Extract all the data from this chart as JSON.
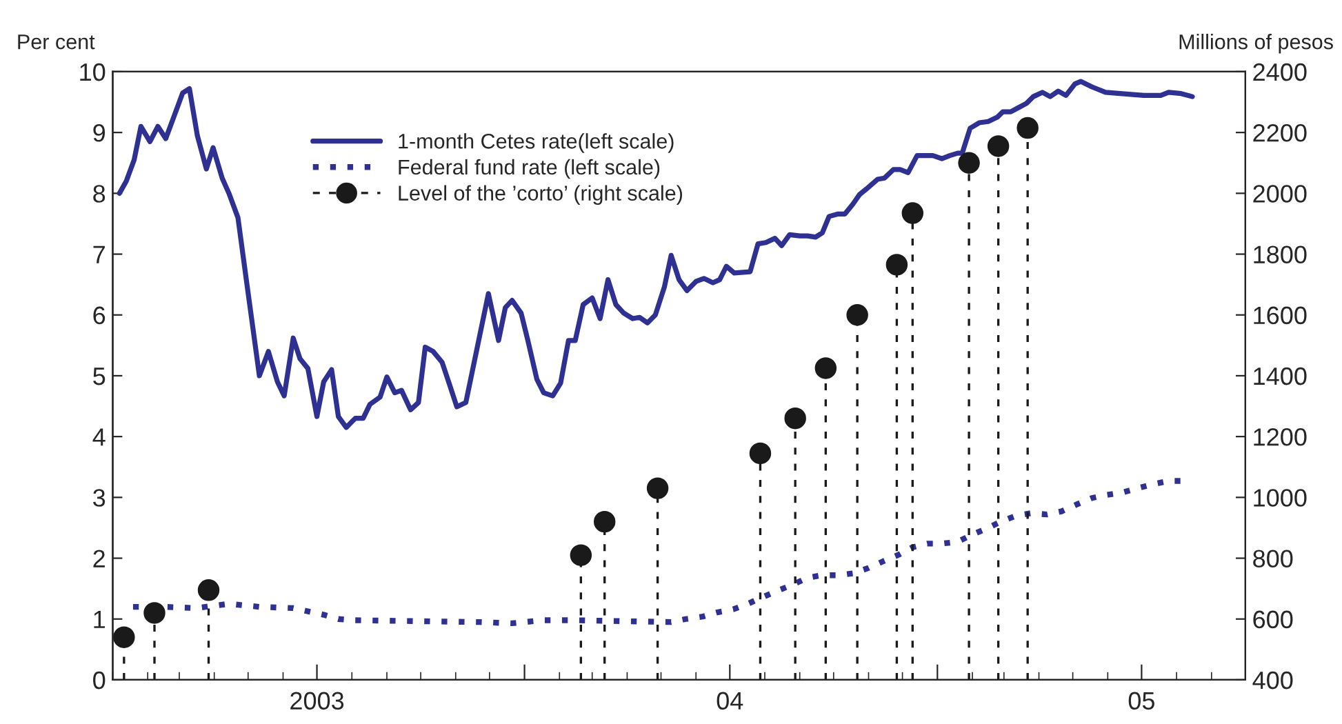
{
  "chart_data": {
    "type": "line",
    "xlabel": null,
    "ylabel": "Per cent",
    "y2label": "Millions of pesos",
    "xlim": [
      "2003-01-01",
      "2005-10-01"
    ],
    "xticks": [
      {
        "value": "2003-07-01",
        "label": "2003"
      },
      {
        "value": "2004-01-01",
        "label": null
      },
      {
        "value": "2004-07-01",
        "label": "04"
      },
      {
        "value": "2005-01-01",
        "label": null
      },
      {
        "value": "2005-07-01",
        "label": "05"
      }
    ],
    "ylim": [
      0,
      10
    ],
    "yticks": [
      0,
      1,
      2,
      3,
      4,
      5,
      6,
      7,
      8,
      9,
      10
    ],
    "y2lim": [
      400,
      2400
    ],
    "y2ticks": [
      400,
      600,
      800,
      1000,
      1200,
      1400,
      1600,
      1800,
      2000,
      2200,
      2400
    ],
    "grid": false,
    "legend": "top left",
    "series": [
      {
        "name": "1-month Cetes rate(left scale)",
        "color": "#2e3192",
        "line_style": "solid",
        "marker": "none",
        "x": [
          "2003-01-07",
          "2003-01-13",
          "2003-01-20",
          "2003-01-26",
          "2003-02-03",
          "2003-02-10",
          "2003-02-17",
          "2003-02-25",
          "2003-03-04",
          "2003-03-10",
          "2003-03-17",
          "2003-03-25",
          "2003-03-31",
          "2003-04-08",
          "2003-04-14",
          "2003-04-22",
          "2003-04-30",
          "2003-05-11",
          "2003-05-19",
          "2003-05-27",
          "2003-06-02",
          "2003-06-10",
          "2003-06-16",
          "2003-06-23",
          "2003-07-01",
          "2003-07-07",
          "2003-07-14",
          "2003-07-20",
          "2003-07-27",
          "2003-08-04",
          "2003-08-11",
          "2003-08-17",
          "2003-08-26",
          "2003-09-01",
          "2003-09-08",
          "2003-09-14",
          "2003-09-22",
          "2003-09-29",
          "2003-10-05",
          "2003-10-12",
          "2003-10-20",
          "2003-10-27",
          "2003-11-02",
          "2003-11-10",
          "2003-11-30",
          "2003-12-09",
          "2003-12-15",
          "2003-12-21",
          "2003-12-29",
          "2004-01-04",
          "2004-01-12",
          "2004-01-18",
          "2004-01-26",
          "2004-02-02",
          "2004-02-09",
          "2004-02-15",
          "2004-02-22",
          "2004-03-01",
          "2004-03-08",
          "2004-03-15",
          "2004-03-22",
          "2004-03-29",
          "2004-04-06",
          "2004-04-12",
          "2004-04-19",
          "2004-04-26",
          "2004-05-04",
          "2004-05-10",
          "2004-05-17",
          "2004-05-24",
          "2004-06-01",
          "2004-06-08",
          "2004-06-16",
          "2004-06-22",
          "2004-06-28",
          "2004-07-05",
          "2004-07-19",
          "2004-07-26",
          "2004-08-02",
          "2004-08-10",
          "2004-08-16",
          "2004-08-23",
          "2004-09-01",
          "2004-09-08",
          "2004-09-15",
          "2004-09-21",
          "2004-09-27",
          "2004-10-05",
          "2004-10-11",
          "2004-10-18",
          "2004-10-24",
          "2004-10-30",
          "2004-11-09",
          "2004-11-15",
          "2004-11-23",
          "2004-11-29",
          "2004-12-06",
          "2004-12-14",
          "2004-12-22",
          "2004-12-28",
          "2005-01-05",
          "2005-01-12",
          "2005-01-19",
          "2005-01-23",
          "2005-01-30",
          "2005-02-07",
          "2005-02-15",
          "2005-02-23",
          "2005-02-28",
          "2005-03-07",
          "2005-03-14",
          "2005-03-21",
          "2005-03-27",
          "2005-04-04",
          "2005-04-11",
          "2005-04-18",
          "2005-04-25",
          "2005-05-03",
          "2005-05-08",
          "2005-05-18",
          "2005-05-30",
          "2005-06-12",
          "2005-07-03",
          "2005-07-18",
          "2005-07-25",
          "2005-08-05",
          "2005-08-15"
        ],
        "values": [
          8.0,
          8.2,
          8.55,
          9.1,
          8.85,
          9.1,
          8.9,
          9.3,
          9.65,
          9.72,
          8.95,
          8.4,
          8.75,
          8.25,
          8.0,
          7.6,
          6.5,
          5.0,
          5.4,
          4.9,
          4.67,
          5.62,
          5.28,
          5.12,
          4.33,
          4.9,
          5.1,
          4.33,
          4.15,
          4.3,
          4.3,
          4.53,
          4.65,
          4.98,
          4.72,
          4.76,
          4.44,
          4.56,
          5.47,
          5.4,
          5.22,
          4.83,
          4.49,
          4.56,
          6.35,
          5.58,
          6.12,
          6.24,
          6.03,
          5.58,
          4.94,
          4.72,
          4.67,
          4.88,
          5.58,
          5.58,
          6.17,
          6.28,
          5.94,
          6.58,
          6.17,
          6.03,
          5.94,
          5.96,
          5.87,
          6.0,
          6.46,
          6.98,
          6.58,
          6.4,
          6.55,
          6.6,
          6.53,
          6.58,
          6.8,
          6.69,
          6.71,
          7.17,
          7.19,
          7.26,
          7.14,
          7.32,
          7.3,
          7.3,
          7.28,
          7.35,
          7.62,
          7.66,
          7.66,
          7.82,
          7.98,
          8.07,
          8.23,
          8.25,
          8.39,
          8.39,
          8.34,
          8.62,
          8.62,
          8.62,
          8.57,
          8.62,
          8.66,
          8.66,
          9.07,
          9.16,
          9.18,
          9.25,
          9.34,
          9.34,
          9.41,
          9.48,
          9.59,
          9.66,
          9.59,
          9.68,
          9.61,
          9.8,
          9.84,
          9.75,
          9.66,
          9.64,
          9.61,
          9.61,
          9.66,
          9.64,
          9.59
        ]
      },
      {
        "name": "Federal fund rate (left scale)",
        "color": "#2e3192",
        "line_style": "dotted",
        "marker": "none",
        "x": [
          "2003-01-19",
          "2003-02-16",
          "2003-03-16",
          "2003-04-14",
          "2003-05-11",
          "2003-06-10",
          "2003-06-22",
          "2003-07-07",
          "2003-07-20",
          "2003-08-03",
          "2003-11-22",
          "2003-12-21",
          "2004-01-18",
          "2004-02-15",
          "2004-05-10",
          "2004-05-23",
          "2004-06-07",
          "2004-06-20",
          "2004-07-04",
          "2004-07-17",
          "2004-07-30",
          "2004-08-13",
          "2004-08-25",
          "2004-09-08",
          "2004-09-21",
          "2004-10-05",
          "2004-10-18",
          "2004-11-01",
          "2004-11-14",
          "2004-11-28",
          "2004-12-10",
          "2004-12-23",
          "2005-01-05",
          "2005-01-19",
          "2005-01-31",
          "2005-02-14",
          "2005-02-26",
          "2005-03-12",
          "2005-03-25",
          "2005-04-08",
          "2005-04-21",
          "2005-05-04",
          "2005-05-18",
          "2005-05-31",
          "2005-06-14",
          "2005-06-27",
          "2005-07-12",
          "2005-07-25",
          "2005-08-08"
        ],
        "values": [
          1.2,
          1.2,
          1.18,
          1.25,
          1.2,
          1.18,
          1.13,
          1.07,
          1.0,
          0.98,
          0.95,
          0.93,
          0.98,
          0.98,
          0.95,
          1.0,
          1.04,
          1.11,
          1.16,
          1.25,
          1.36,
          1.47,
          1.56,
          1.68,
          1.72,
          1.72,
          1.75,
          1.84,
          1.95,
          2.06,
          2.18,
          2.24,
          2.24,
          2.27,
          2.38,
          2.49,
          2.6,
          2.7,
          2.74,
          2.72,
          2.77,
          2.88,
          2.99,
          3.04,
          3.08,
          3.15,
          3.22,
          3.27,
          3.27
        ]
      },
      {
        "name": "Level of the ’corto’ (right scale)",
        "type": "lollipop",
        "axis": "y2",
        "color": "#1a1a1a",
        "line_style": "dashed",
        "marker": "circle",
        "x": [
          "2003-01-11",
          "2003-02-07",
          "2003-03-27",
          "2004-02-20",
          "2004-03-12",
          "2004-04-28",
          "2004-07-28",
          "2004-08-28",
          "2004-09-24",
          "2004-10-22",
          "2004-11-26",
          "2004-12-10",
          "2005-01-29",
          "2005-02-24",
          "2005-03-22"
        ],
        "values": [
          540,
          620,
          695,
          810,
          920,
          1030,
          1145,
          1260,
          1425,
          1600,
          1765,
          1935,
          2100,
          2155,
          2215
        ]
      }
    ]
  }
}
